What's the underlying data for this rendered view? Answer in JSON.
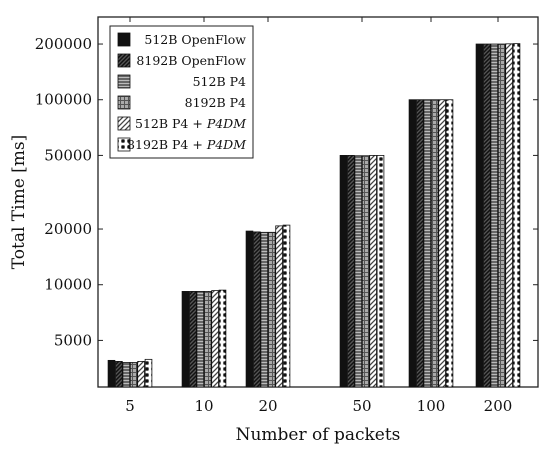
{
  "chart_data": {
    "type": "bar",
    "xlabel": "Number of packets",
    "ylabel": "Total Time [ms]",
    "yscale": "log",
    "ylim": [
      2800,
      280000
    ],
    "grid": false,
    "legend_position": "top-left",
    "categories": [
      "5",
      "10",
      "20",
      "50",
      "100",
      "200"
    ],
    "y_ticks": [
      5000,
      10000,
      20000,
      50000,
      100000,
      200000
    ],
    "y_tick_labels": [
      "5000",
      "10000",
      "20000",
      "50000",
      "100000",
      "200000"
    ],
    "series": [
      {
        "name": "512B OpenFlow",
        "name_main": "512B OpenFlow",
        "name_em": "",
        "pattern": "solid-black",
        "values": [
          3900,
          9200,
          19500,
          50000,
          100000,
          200000
        ]
      },
      {
        "name": "8192B OpenFlow",
        "name_main": "8192B OpenFlow",
        "name_em": "",
        "pattern": "dark-diagonal",
        "values": [
          3850,
          9200,
          19300,
          50000,
          100000,
          200000
        ]
      },
      {
        "name": "512B P4",
        "name_main": "512B P4",
        "name_em": "",
        "pattern": "horizontal-lines",
        "values": [
          3800,
          9200,
          19200,
          49800,
          100000,
          200000
        ]
      },
      {
        "name": "8192B P4",
        "name_main": "8192B P4",
        "name_em": "",
        "pattern": "grid",
        "values": [
          3800,
          9200,
          19200,
          49800,
          100000,
          200000
        ]
      },
      {
        "name": "512B P4 + P4DM",
        "name_main": "512B P4 + ",
        "name_em": "P4DM",
        "pattern": "light-diagonal",
        "values": [
          3850,
          9300,
          20800,
          50000,
          100000,
          200500
        ]
      },
      {
        "name": "8192B P4 + P4DM",
        "name_main": "8192B P4 + ",
        "name_em": "P4DM",
        "pattern": "stars",
        "values": [
          3950,
          9350,
          21000,
          50000,
          100000,
          201000
        ]
      }
    ]
  }
}
